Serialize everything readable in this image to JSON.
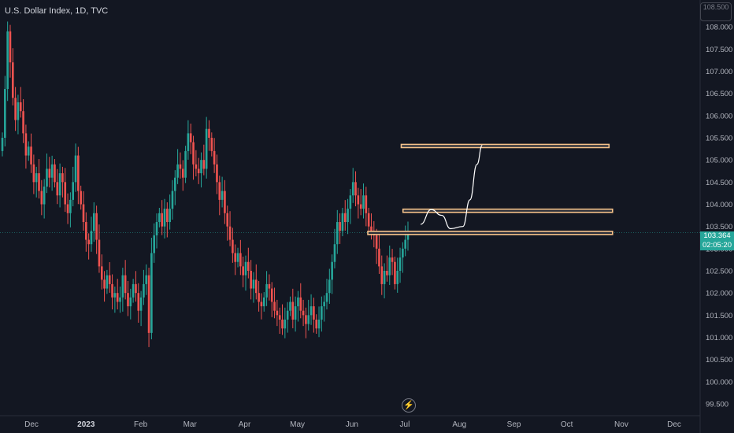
{
  "header": {
    "title": "U.S. Dollar Index, 1D, TVC"
  },
  "last_price": {
    "value": "103.364",
    "countdown": "02:05:20"
  },
  "scale_button": {
    "label": "108.500"
  },
  "colors": {
    "up": "#26a69a",
    "down": "#ef5350",
    "background": "#131722",
    "zone": "#f5c28a",
    "path": "#ffffff"
  },
  "icons": {
    "flash": "lightning-icon"
  },
  "chart_data": {
    "type": "candlestick",
    "title": "U.S. Dollar Index, 1D, TVC",
    "ylim": [
      99.5,
      108.5
    ],
    "y_ticks": [
      "108.000",
      "107.500",
      "107.000",
      "106.500",
      "106.000",
      "105.500",
      "105.000",
      "104.500",
      "104.000",
      "103.500",
      "103.000",
      "102.500",
      "102.000",
      "101.500",
      "101.000",
      "100.500",
      "100.000",
      "99.500"
    ],
    "x_ticks": [
      "Dec",
      "2023",
      "Feb",
      "Mar",
      "Apr",
      "May",
      "Jun",
      "Jul",
      "Aug",
      "Sep",
      "Oct",
      "Nov",
      "Dec"
    ],
    "x_tick_days": [
      0,
      31,
      62,
      90,
      121,
      151,
      182,
      212,
      243,
      274,
      304,
      335,
      365
    ],
    "last_price": 103.364,
    "candles_close": [
      105.5,
      106.6,
      107.9,
      107.2,
      106.4,
      105.9,
      106.3,
      106.1,
      105.6,
      105.1,
      105.3,
      104.9,
      104.5,
      104.7,
      104.3,
      104.0,
      104.4,
      104.8,
      104.6,
      104.9,
      104.5,
      104.2,
      104.7,
      104.5,
      104.0,
      103.8,
      104.1,
      104.5,
      105.1,
      104.3,
      104.0,
      103.6,
      103.2,
      103.1,
      103.4,
      103.8,
      103.2,
      102.6,
      102.3,
      102.1,
      102.4,
      102.2,
      101.9,
      102.0,
      101.8,
      101.9,
      102.4,
      102.0,
      101.7,
      101.9,
      102.2,
      102.0,
      101.6,
      101.9,
      102.2,
      102.4,
      101.1,
      102.9,
      103.3,
      103.6,
      103.8,
      103.5,
      103.9,
      103.6,
      103.9,
      104.3,
      104.6,
      104.9,
      104.8,
      104.6,
      105.2,
      105.6,
      105.4,
      104.9,
      104.8,
      104.7,
      105.0,
      104.8,
      105.7,
      105.5,
      105.2,
      104.9,
      104.5,
      104.1,
      104.3,
      103.8,
      103.5,
      103.2,
      102.9,
      102.7,
      102.9,
      102.6,
      102.4,
      102.7,
      102.5,
      102.1,
      102.3,
      102.0,
      101.8,
      101.7,
      101.9,
      102.2,
      102.1,
      101.8,
      101.6,
      101.5,
      101.4,
      101.2,
      101.4,
      101.6,
      101.8,
      101.4,
      101.7,
      101.9,
      101.6,
      101.5,
      101.3,
      101.5,
      101.7,
      101.4,
      101.2,
      101.4,
      101.7,
      101.8,
      102.0,
      102.3,
      102.7,
      103.1,
      103.6,
      103.4,
      103.8,
      103.6,
      103.9,
      104.2,
      104.5,
      104.2,
      104.0,
      103.9,
      104.2,
      103.8,
      103.5,
      103.4,
      103.3,
      103.0,
      102.6,
      102.2,
      102.5,
      102.4,
      102.8,
      102.7,
      102.2,
      102.5,
      102.8,
      103.0,
      103.2,
      103.364
    ],
    "support_resistance_zones": [
      {
        "label": "105.500",
        "price_top": 105.35,
        "price_bottom": 105.31,
        "day_start": 210,
        "day_end": 328
      },
      {
        "label": "104.000",
        "price_top": 103.89,
        "price_bottom": 103.85,
        "day_start": 211,
        "day_end": 330
      },
      {
        "label": "103.364",
        "price_top": 103.39,
        "price_bottom": 103.35,
        "day_start": 191,
        "day_end": 330
      }
    ],
    "projected_path": [
      [
        221,
        103.55
      ],
      [
        227,
        103.88
      ],
      [
        233,
        103.75
      ],
      [
        238,
        103.45
      ],
      [
        245,
        103.5
      ],
      [
        249,
        104.1
      ],
      [
        253,
        104.9
      ],
      [
        256,
        105.33
      ]
    ]
  }
}
